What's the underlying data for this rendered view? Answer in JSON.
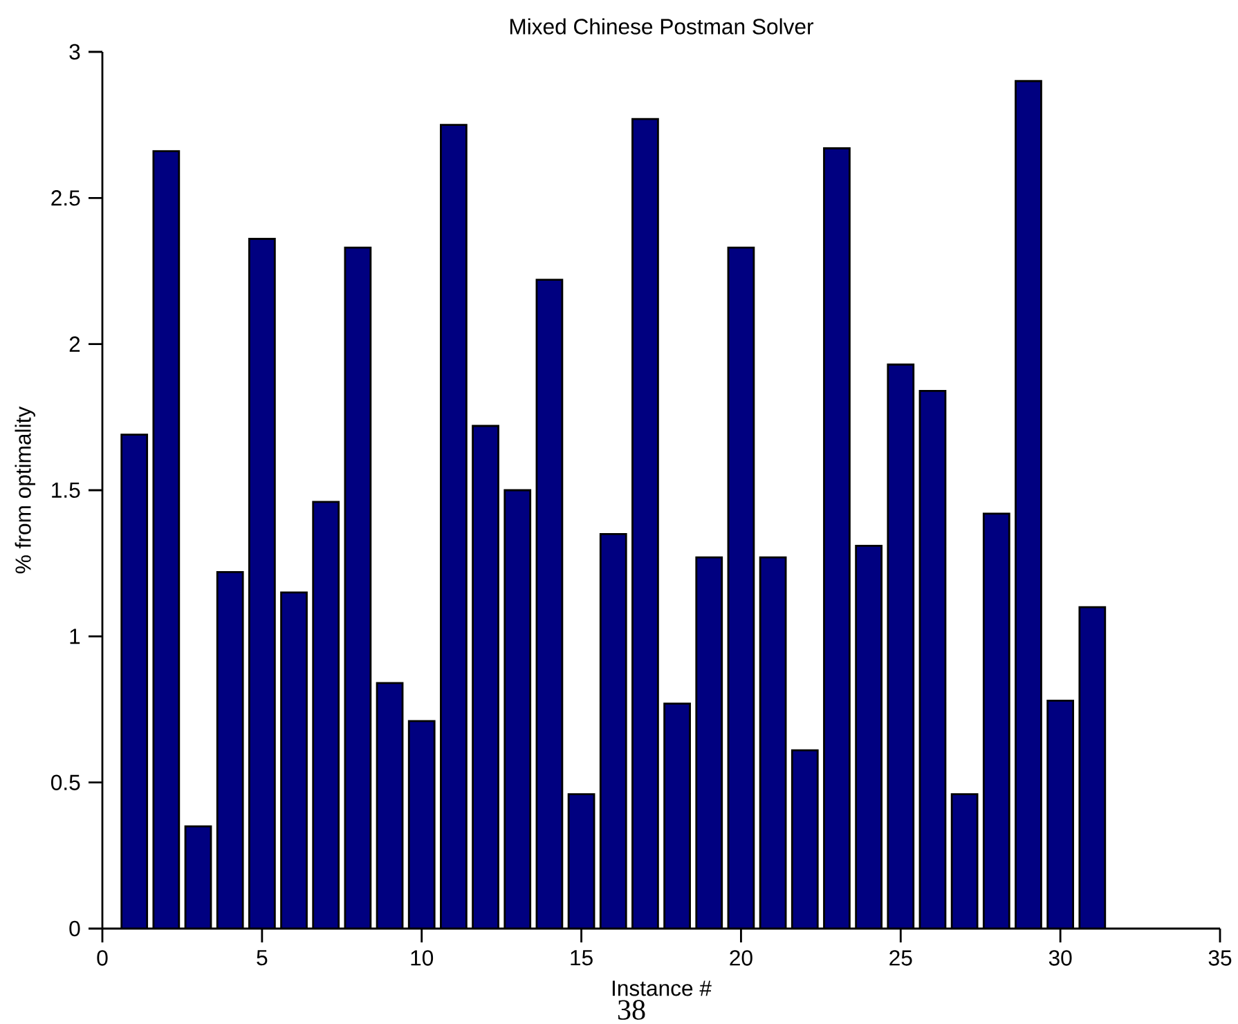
{
  "chart_data": {
    "type": "bar",
    "title": "Mixed Chinese Postman Solver",
    "xlabel": "Instance #",
    "ylabel": "% from optimality",
    "x": [
      1,
      2,
      3,
      4,
      5,
      6,
      7,
      8,
      9,
      10,
      11,
      12,
      13,
      14,
      15,
      16,
      17,
      18,
      19,
      20,
      21,
      22,
      23,
      24,
      25,
      26,
      27,
      28,
      29,
      30,
      31
    ],
    "values": [
      1.69,
      2.66,
      0.35,
      1.22,
      2.36,
      1.15,
      1.46,
      2.33,
      0.84,
      0.71,
      2.75,
      1.72,
      1.5,
      2.22,
      0.46,
      1.35,
      2.77,
      0.77,
      1.27,
      2.33,
      1.27,
      0.61,
      2.67,
      1.31,
      1.93,
      1.84,
      0.46,
      1.42,
      2.9,
      0.78,
      1.1
    ],
    "color": "#000080",
    "xlim": [
      0,
      35
    ],
    "xticks": [
      0,
      5,
      10,
      15,
      20,
      25,
      30,
      35
    ],
    "ylim": [
      0,
      3
    ],
    "yticks": [
      0,
      0.5,
      1,
      1.5,
      2,
      2.5,
      3
    ],
    "annotations": [
      "38"
    ]
  }
}
